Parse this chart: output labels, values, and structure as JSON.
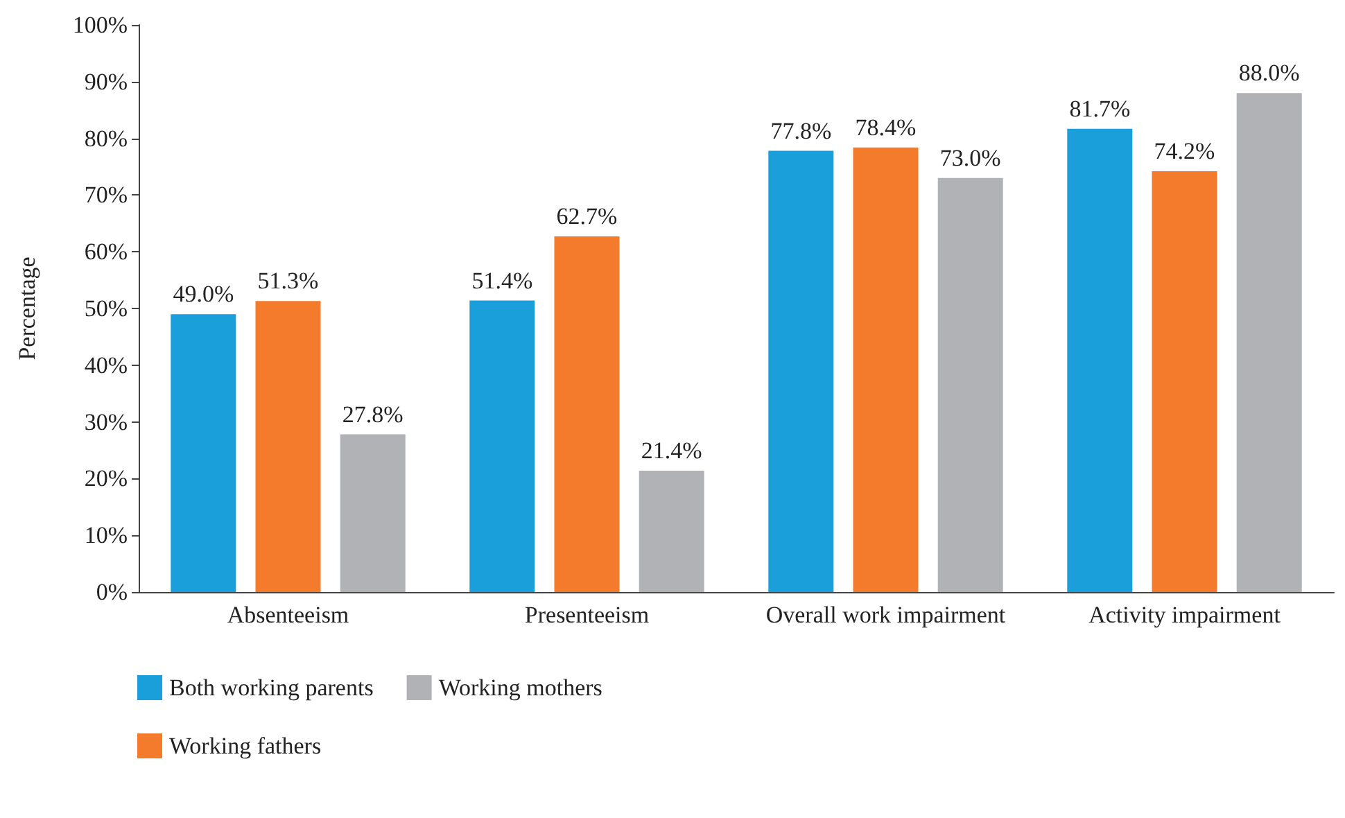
{
  "chart_data": {
    "type": "bar",
    "ylabel": "Percentage",
    "categories": [
      "Absenteeism",
      "Presenteeism",
      "Overall work impairment",
      "Activity impairment"
    ],
    "series": [
      {
        "name": "Both working parents",
        "color": "#1a9fdb",
        "values": [
          49.0,
          51.4,
          77.8,
          81.7
        ],
        "value_labels": [
          "49.0%",
          "51.4%",
          "77.8%",
          "81.7%"
        ]
      },
      {
        "name": "Working fathers",
        "color": "#f47b2c",
        "values": [
          51.3,
          62.7,
          78.4,
          74.2
        ],
        "value_labels": [
          "51.3%",
          "62.7%",
          "78.4%",
          "74.2%"
        ]
      },
      {
        "name": "Working mothers",
        "color": "#b1b2b6",
        "values": [
          27.8,
          21.4,
          73.0,
          88.0
        ],
        "value_labels": [
          "27.8%",
          "21.4%",
          "73.0%",
          "88.0%"
        ]
      }
    ],
    "ylim": [
      0,
      100
    ],
    "yticks": [
      {
        "value": 0,
        "label": "0%"
      },
      {
        "value": 10,
        "label": "10%"
      },
      {
        "value": 20,
        "label": "20%"
      },
      {
        "value": 30,
        "label": "30%"
      },
      {
        "value": 40,
        "label": "40%"
      },
      {
        "value": 50,
        "label": "50%"
      },
      {
        "value": 60,
        "label": "60%"
      },
      {
        "value": 70,
        "label": "70%"
      },
      {
        "value": 80,
        "label": "80%"
      },
      {
        "value": 90,
        "label": "90%"
      },
      {
        "value": 100,
        "label": "100%"
      }
    ],
    "grid": false,
    "legend": "bottom left"
  }
}
